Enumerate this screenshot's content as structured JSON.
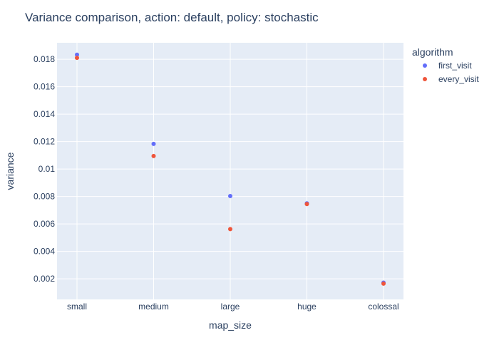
{
  "chart_data": {
    "type": "scatter",
    "title": "Variance comparison, action: default, policy: stochastic",
    "xlabel": "map_size",
    "ylabel": "variance",
    "categories": [
      "small",
      "medium",
      "large",
      "huge",
      "colossal"
    ],
    "ylim": [
      0.0005,
      0.0192
    ],
    "yticks": [
      0.002,
      0.004,
      0.006,
      0.008,
      0.01,
      0.012,
      0.014,
      0.016,
      0.018
    ],
    "ytick_labels": [
      "0.002",
      "0.004",
      "0.006",
      "0.008",
      "0.01",
      "0.012",
      "0.014",
      "0.016",
      "0.018"
    ],
    "legend": {
      "title": "algorithm",
      "placement": "top-right, outside plot"
    },
    "grid": true,
    "colors": {
      "plot_background": "#E5ECF6",
      "grid": "#FFFFFF",
      "text": "#2A3F5F"
    },
    "series": [
      {
        "name": "first_visit",
        "color": "#636EFA",
        "values": [
          0.01833,
          0.01183,
          0.00803,
          0.0075,
          0.00172
        ]
      },
      {
        "name": "every_visit",
        "color": "#EF553B",
        "values": [
          0.0181,
          0.01095,
          0.00562,
          0.00745,
          0.00165
        ]
      }
    ]
  }
}
